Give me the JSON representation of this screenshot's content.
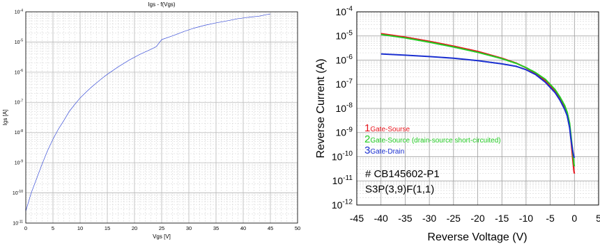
{
  "chart_data": [
    {
      "type": "line",
      "title": "Igs - f(Vgs)",
      "xlabel": "Vgs [V]",
      "ylabel": "Igs [A]",
      "xlim": [
        0,
        50
      ],
      "ylim": [
        1e-11,
        0.0001
      ],
      "y_scale": "log",
      "grid": true,
      "x_ticks": [
        "0",
        "5",
        "10",
        "15",
        "20",
        "25",
        "30",
        "35",
        "40",
        "45",
        "50"
      ],
      "y_ticks": [
        {
          "base": "10",
          "exp": "-11"
        },
        {
          "base": "10",
          "exp": "-10"
        },
        {
          "base": "10",
          "exp": "-9"
        },
        {
          "base": "10",
          "exp": "-8"
        },
        {
          "base": "10",
          "exp": "-7"
        },
        {
          "base": "10",
          "exp": "-6"
        },
        {
          "base": "10",
          "exp": "-5"
        },
        {
          "base": "10",
          "exp": "-4"
        }
      ],
      "series": [
        {
          "color": "#3b4fd8",
          "x": [
            0,
            0.5,
            1,
            2,
            3,
            4,
            5,
            6,
            7,
            8,
            9,
            10,
            11,
            12,
            13,
            14,
            15,
            17,
            19,
            21,
            23,
            24,
            25,
            27,
            29,
            31,
            33,
            35,
            37,
            39,
            41,
            43,
            44,
            45
          ],
          "y": [
            2.5e-11,
            5e-11,
            1e-10,
            3e-10,
            9e-10,
            2.5e-09,
            6e-09,
            1.3e-08,
            2.5e-08,
            5e-08,
            8.5e-08,
            1.4e-07,
            2.1e-07,
            3.1e-07,
            4.4e-07,
            6.2e-07,
            8.5e-07,
            1.5e-06,
            2.5e-06,
            3.9e-06,
            5.7e-06,
            7e-06,
            1.2e-05,
            1.6e-05,
            2.2e-05,
            2.9e-05,
            3.6e-05,
            4.3e-05,
            5e-05,
            5.9e-05,
            6.6e-05,
            7.2e-05,
            7.9e-05,
            8.5e-05
          ]
        }
      ]
    },
    {
      "type": "line",
      "xlabel": "Reverse Voltage (V)",
      "ylabel": "Reverse Current (A)",
      "xlim": [
        -45,
        5
      ],
      "ylim": [
        1e-12,
        0.0001
      ],
      "y_scale": "log",
      "grid": true,
      "x_ticks": [
        "-45",
        "-40",
        "-35",
        "-30",
        "-25",
        "-20",
        "-15",
        "-10",
        "-5",
        "0",
        "5"
      ],
      "y_ticks": [
        {
          "base": "10",
          "exp": "-12"
        },
        {
          "base": "10",
          "exp": "-11"
        },
        {
          "base": "10",
          "exp": "-10"
        },
        {
          "base": "10",
          "exp": "-9"
        },
        {
          "base": "10",
          "exp": "-8"
        },
        {
          "base": "10",
          "exp": "-7"
        },
        {
          "base": "10",
          "exp": "-6"
        },
        {
          "base": "10",
          "exp": "-5"
        },
        {
          "base": "10",
          "exp": "-4"
        }
      ],
      "legend_position": "bottom-left",
      "legend": [
        {
          "number": "1",
          "name": "Gate-Sourse",
          "color": "#e8141c"
        },
        {
          "number": "2",
          "name": "Gate-Source (drain-source short-circuited)",
          "color": "#22cc22"
        },
        {
          "number": "3",
          "name": "Gate-Drain",
          "color": "#1a2fd0"
        }
      ],
      "annotations": [
        "# CB145602-P1",
        "S3P(3,9)F(1,1)"
      ],
      "series": [
        {
          "name": "Gate-Sourse",
          "color": "#e8141c",
          "x": [
            -40,
            -35,
            -30,
            -25,
            -20,
            -15,
            -12,
            -10,
            -8,
            -6,
            -4,
            -3,
            -2,
            -1.5,
            -1,
            -0.7,
            -0.4,
            -0.2,
            -0.1,
            0
          ],
          "y": [
            1.25e-05,
            9e-06,
            6e-06,
            3.8e-06,
            2.3e-06,
            1.2e-06,
            7.5e-07,
            4.8e-07,
            2.8e-07,
            1.4e-07,
            5e-08,
            2.6e-08,
            1.1e-08,
            6e-09,
            2e-09,
            5e-10,
            1e-10,
            4e-11,
            2.5e-11,
            2e-11
          ]
        },
        {
          "name": "Gate-Source (drain-source short-circuited)",
          "color": "#22cc22",
          "x": [
            -40,
            -35,
            -30,
            -25,
            -20,
            -15,
            -12,
            -10,
            -8,
            -6,
            -4,
            -3,
            -2,
            -1.5,
            -1,
            -0.7,
            -0.4,
            -0.2,
            -0.1,
            0
          ],
          "y": [
            1.15e-05,
            8.3e-06,
            5.5e-06,
            3.5e-06,
            2.1e-06,
            1.15e-06,
            7.3e-07,
            4.9e-07,
            3e-07,
            1.6e-07,
            6e-08,
            3e-08,
            1.3e-08,
            7e-09,
            2.5e-09,
            7e-10,
            2e-10,
            8e-11,
            5e-11,
            4e-11
          ]
        },
        {
          "name": "Gate-Drain",
          "color": "#1a2fd0",
          "x": [
            -40,
            -35,
            -30,
            -25,
            -20,
            -15,
            -12,
            -10,
            -8,
            -6,
            -4,
            -3,
            -2,
            -1.5,
            -1,
            -0.7,
            -0.4,
            -0.2,
            -0.1,
            0
          ],
          "y": [
            1.8e-06,
            1.6e-06,
            1.4e-06,
            1.2e-06,
            9.5e-07,
            7e-07,
            5.5e-07,
            4e-07,
            2.5e-07,
            1.2e-07,
            4.5e-08,
            2.2e-08,
            9e-09,
            5e-09,
            1.6e-09,
            5e-10,
            2e-10,
            1.2e-10,
            1e-10,
            9e-11
          ]
        }
      ]
    }
  ]
}
